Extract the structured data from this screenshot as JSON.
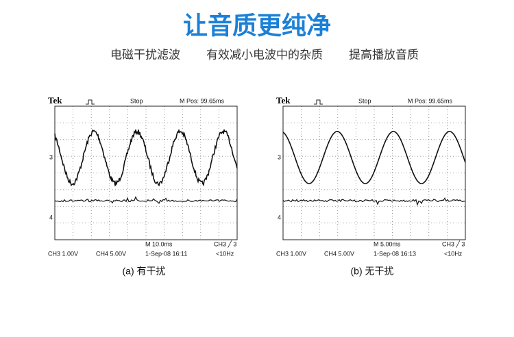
{
  "header": {
    "title": "让音质更纯净",
    "subtitle": [
      "电磁干扰滤波",
      "有效减小电波中的杂质",
      "提高播放音质"
    ]
  },
  "panels": [
    {
      "brand": "Tek",
      "status": "Stop",
      "position": "M Pos: 99.65ms",
      "ch3_marker": "3",
      "ch4_marker": "4",
      "timebase": "M 10.0ms",
      "trigger": "CH3 ╱ 3",
      "ch3": "CH3  1.00V",
      "ch4": "CH4  5.00V",
      "date": "1-Sep-08  16:11",
      "freq": "<10Hz",
      "caption": "(a) 有干扰"
    },
    {
      "brand": "Tek",
      "status": "Stop",
      "position": "M Pos: 99.65ms",
      "ch3_marker": "3",
      "ch4_marker": "4",
      "timebase": "M 5.00ms",
      "trigger": "CH3 ╱ 3",
      "ch3": "CH3  1.00V",
      "ch4": "CH4  5.00V",
      "date": "1-Sep-08  16:13",
      "freq": "<10Hz",
      "caption": "(b) 无干扰"
    }
  ]
}
